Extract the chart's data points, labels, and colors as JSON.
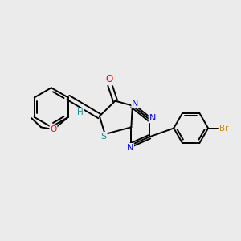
{
  "bg_color": "#EBEBEB",
  "bond_color": "#000000",
  "atom_colors": {
    "O": "#FF0000",
    "N": "#0000FF",
    "S": "#1a8a8a",
    "Br": "#CC8800",
    "H": "#1a8a8a",
    "C": "#000000"
  },
  "lw": 1.4
}
